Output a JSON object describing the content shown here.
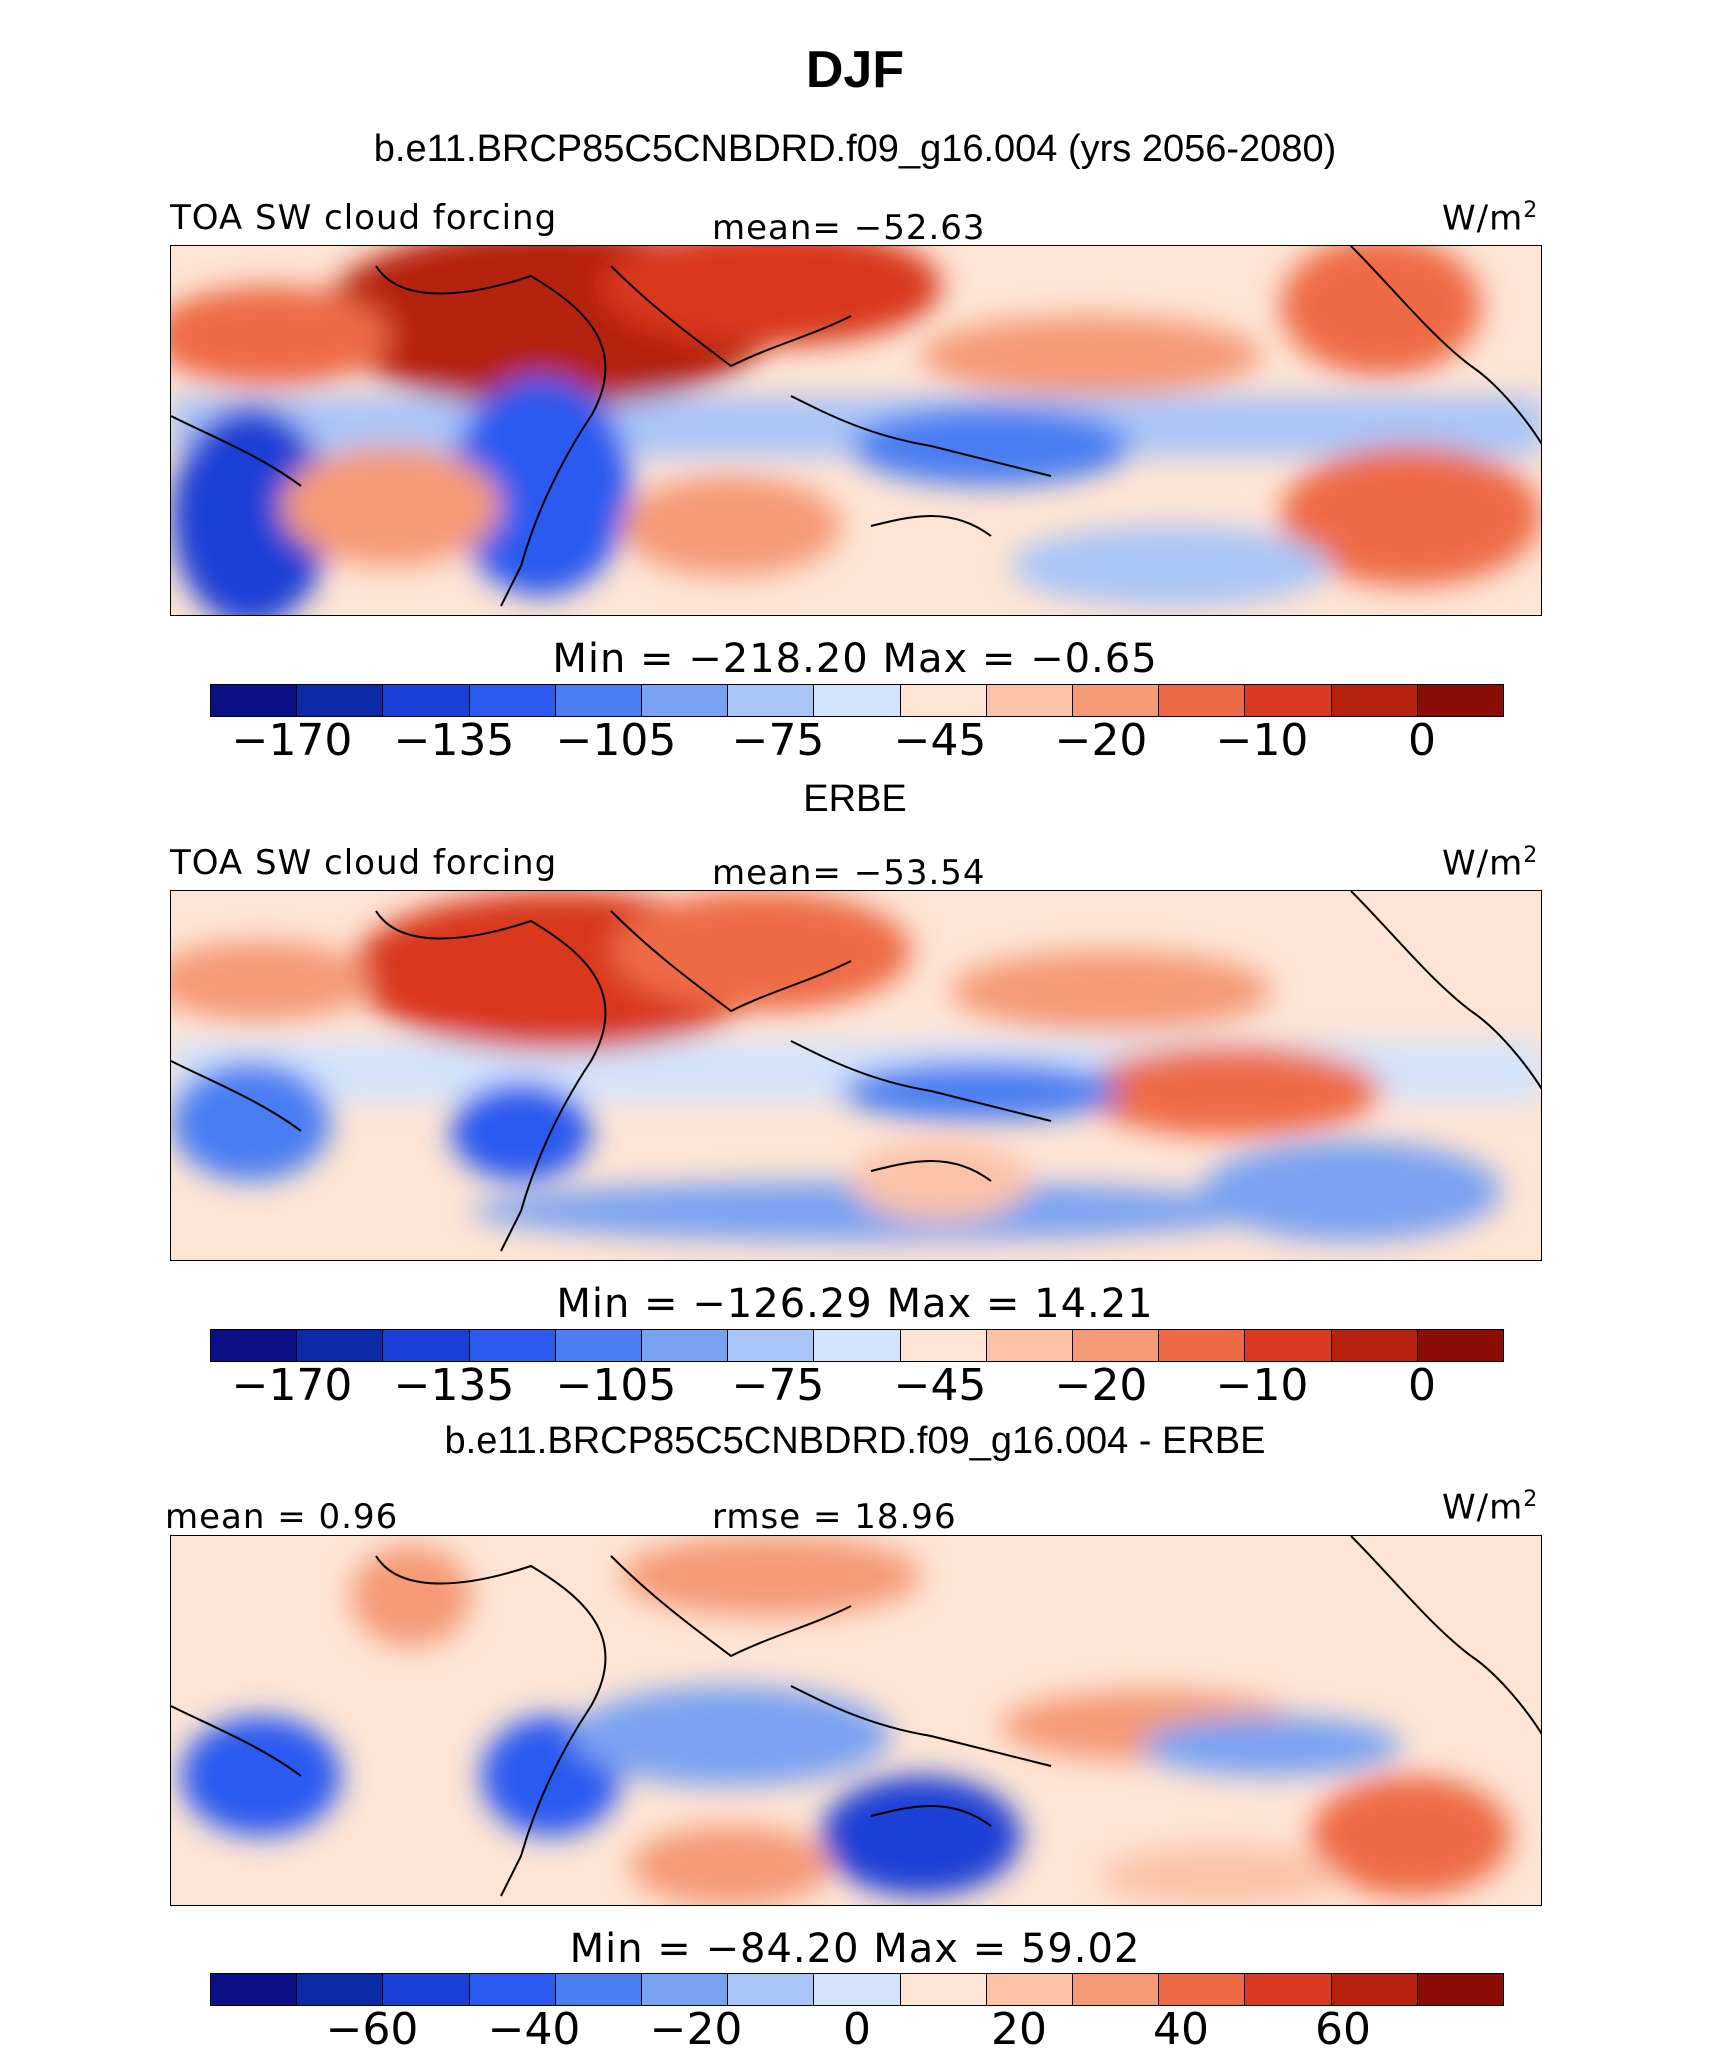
{
  "title": "DJF",
  "panels": [
    {
      "heading": "b.e11.BRCP85C5CNBDRD.f09_g16.004 (yrs 2056-2080)",
      "left_label": "TOA SW cloud forcing",
      "center_label": "mean= −52.63",
      "units": "W/m",
      "units_exp": "2",
      "minmax": "Min  =  −218.20  Max  =   −0.65",
      "colorbar_ticks": [
        "−170",
        "−135",
        "−105",
        "−75",
        "−45",
        "−20",
        "−10",
        "0"
      ]
    },
    {
      "heading": "ERBE",
      "left_label": "TOA SW cloud forcing",
      "center_label": "mean= −53.54",
      "units": "W/m",
      "units_exp": "2",
      "minmax": "Min  =  −126.29  Max  =   14.21",
      "colorbar_ticks": [
        "−170",
        "−135",
        "−105",
        "−75",
        "−45",
        "−20",
        "−10",
        "0"
      ]
    },
    {
      "heading": "b.e11.BRCP85C5CNBDRD.f09_g16.004 - ERBE",
      "left_label": "mean  =    0.96",
      "center_label": "rmse  =   18.96",
      "units": "W/m",
      "units_exp": "2",
      "minmax": "Min  =  −84.20  Max  =   59.02",
      "colorbar_ticks": [
        "−60",
        "−40",
        "−20",
        "0",
        "20",
        "40",
        "60"
      ]
    }
  ],
  "colorbar_colors": [
    "#0a0f86",
    "#0a2aa8",
    "#1a3fd6",
    "#2c5af0",
    "#4a7ef2",
    "#7aa2f2",
    "#a9c5f7",
    "#d3e3fb",
    "#fde4d4",
    "#fbc2a8",
    "#f59a76",
    "#ee6a44",
    "#d9391e",
    "#b5200f",
    "#8a0d08"
  ]
}
